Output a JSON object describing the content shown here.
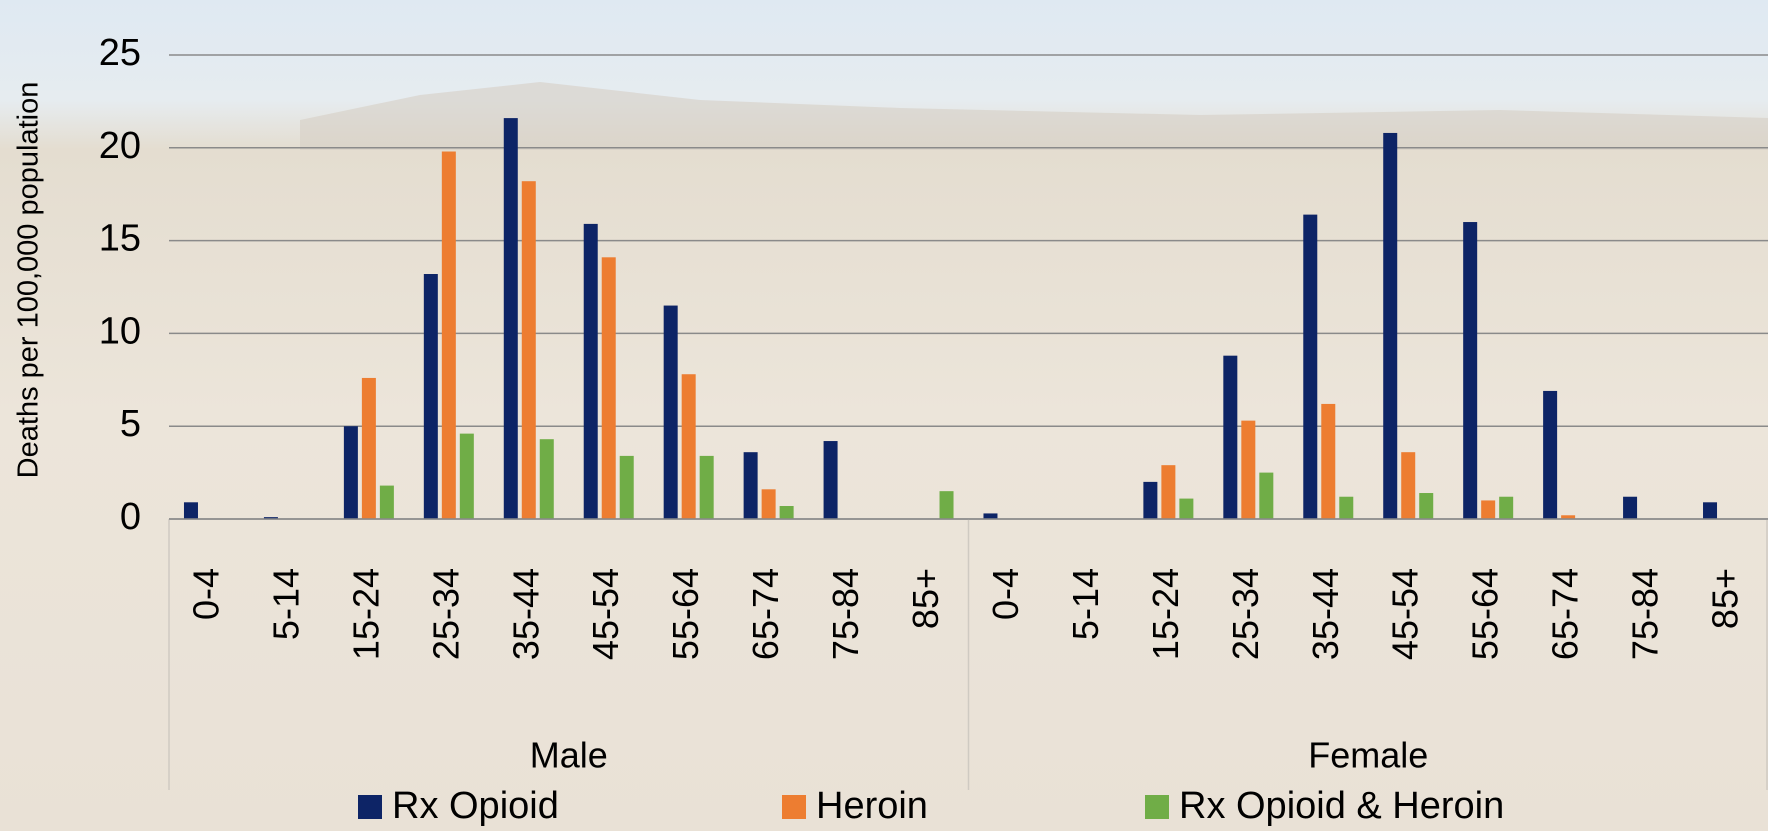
{
  "chart_data": {
    "type": "grouped-bar",
    "y_label": "Deaths per 100,000 population",
    "groups": [
      "Male",
      "Female"
    ],
    "categories": [
      "0-4",
      "5-14",
      "15-24",
      "25-34",
      "35-44",
      "45-54",
      "55-64",
      "65-74",
      "75-84",
      "85+",
      "0-4",
      "5-14",
      "15-24",
      "25-34",
      "35-44",
      "45-54",
      "55-64",
      "65-74",
      "75-84",
      "85+"
    ],
    "series": [
      {
        "name": "Rx Opioid",
        "color": "#0d2466",
        "values": [
          0.9,
          0.1,
          5.0,
          13.2,
          21.6,
          15.9,
          11.5,
          3.6,
          4.2,
          0,
          0.3,
          0,
          2.0,
          8.8,
          16.4,
          20.8,
          16.0,
          6.9,
          1.2,
          0.9
        ]
      },
      {
        "name": "Heroin",
        "color": "#ed7d31",
        "values": [
          0,
          0,
          7.6,
          19.8,
          18.2,
          14.1,
          7.8,
          1.6,
          0,
          0,
          0,
          0,
          2.9,
          5.3,
          6.2,
          3.6,
          1.0,
          0.2,
          0,
          0
        ]
      },
      {
        "name": "Rx Opioid & Heroin",
        "color": "#70ad47",
        "values": [
          0,
          0,
          1.8,
          4.6,
          4.3,
          3.4,
          3.4,
          0.7,
          0,
          1.5,
          0,
          0,
          1.1,
          2.5,
          1.2,
          1.4,
          1.2,
          0,
          0,
          0
        ]
      }
    ],
    "ylim": [
      0,
      25
    ],
    "yticks": [
      0,
      5,
      10,
      15,
      20,
      25
    ],
    "grid": true
  }
}
